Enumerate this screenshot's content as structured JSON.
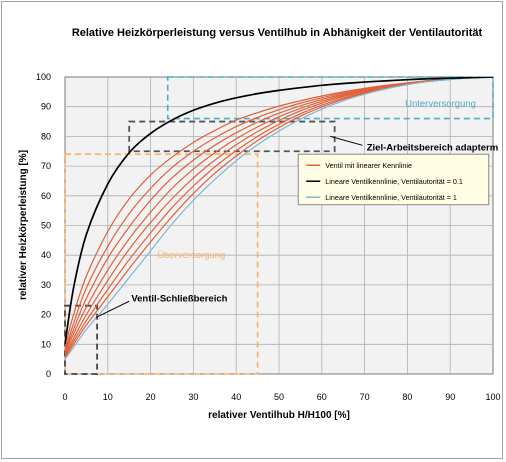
{
  "chart_data": {
    "type": "line",
    "title": "Relative Heizkörperleistung versus Ventilhub in Abhänigkeit der Ventilautorität",
    "xlabel": "relativer Ventilhub H/H100 [%]",
    "ylabel": "relativer Heizkörperleistung [%]",
    "xlim": [
      0,
      100
    ],
    "ylim": [
      0,
      100
    ],
    "x_ticks": [
      "0",
      "10",
      "20",
      "30",
      "40",
      "50",
      "60",
      "70",
      "80",
      "90",
      "100"
    ],
    "y_ticks": [
      "0",
      "10",
      "20",
      "30",
      "40",
      "50",
      "60",
      "70",
      "80",
      "90",
      "100"
    ],
    "grid": true,
    "legend_position": "right-middle",
    "x": [
      0,
      2,
      5,
      10,
      15,
      20,
      25,
      30,
      35,
      40,
      45,
      50,
      55,
      60,
      65,
      70,
      75,
      80,
      85,
      90,
      95,
      100
    ],
    "series": [
      {
        "name": "Lineare Ventilkennlinie, Ventilautorität = 0.1",
        "color": "#000000",
        "values": [
          10,
          29,
          47,
          64,
          74.5,
          81,
          85.5,
          88.8,
          91.2,
          93,
          94.4,
          95.5,
          96.4,
          97.2,
          97.8,
          98.3,
          98.7,
          99.1,
          99.4,
          99.6,
          99.8,
          100
        ]
      },
      {
        "name": "Ventil mit linearer Kennlinie",
        "color": "#e0603a",
        "values": [
          9,
          20,
          33,
          48,
          59,
          67,
          73,
          78,
          82,
          85.5,
          88,
          90.2,
          92,
          93.6,
          95,
          96.2,
          97.2,
          98,
          98.8,
          99.4,
          99.8,
          100
        ]
      },
      {
        "name": "",
        "color": "#e0603a",
        "values": [
          8,
          17,
          29,
          43,
          54,
          62.5,
          69.5,
          75,
          79.5,
          83.3,
          86.4,
          89,
          91.2,
          93,
          94.6,
          95.9,
          97,
          98,
          98.8,
          99.4,
          99.8,
          100
        ]
      },
      {
        "name": "",
        "color": "#e0603a",
        "values": [
          7.5,
          15,
          25.5,
          39,
          49.5,
          58.5,
          66,
          72,
          77,
          81.2,
          84.8,
          87.8,
          90.3,
          92.4,
          94.2,
          95.7,
          96.9,
          97.9,
          98.7,
          99.3,
          99.8,
          100
        ]
      },
      {
        "name": "",
        "color": "#e0603a",
        "values": [
          7,
          13.5,
          22.5,
          35,
          45.5,
          54.5,
          62.5,
          69,
          74.5,
          79.2,
          83.2,
          86.6,
          89.4,
          91.8,
          93.8,
          95.4,
          96.7,
          97.8,
          98.6,
          99.3,
          99.8,
          100
        ]
      },
      {
        "name": "",
        "color": "#e0603a",
        "values": [
          6.5,
          12,
          20,
          31.5,
          42,
          51,
          59,
          66,
          72,
          77.2,
          81.6,
          85.4,
          88.6,
          91.2,
          93.4,
          95.1,
          96.6,
          97.7,
          98.6,
          99.3,
          99.8,
          100
        ]
      },
      {
        "name": "",
        "color": "#e0603a",
        "values": [
          6,
          11,
          18,
          28.5,
          38.5,
          47.5,
          56,
          63.3,
          69.7,
          75.2,
          80,
          84.1,
          87.6,
          90.5,
          92.9,
          94.8,
          96.4,
          97.6,
          98.5,
          99.2,
          99.8,
          100
        ]
      },
      {
        "name": "",
        "color": "#e0603a",
        "values": [
          5.5,
          10,
          16.5,
          26,
          35.5,
          44.5,
          53,
          60.8,
          67.6,
          73.4,
          78.6,
          83,
          86.8,
          89.9,
          92.5,
          94.5,
          96.2,
          97.5,
          98.5,
          99.2,
          99.7,
          100
        ]
      },
      {
        "name": "Lineare Ventilkennlinie, Ventilautorität = 1",
        "color": "#7bb7da",
        "values": [
          5,
          9,
          15,
          23.5,
          32.5,
          41.5,
          50.5,
          58.5,
          65.5,
          71.8,
          77.2,
          81.8,
          85.8,
          89.2,
          92,
          94.2,
          96,
          97.4,
          98.5,
          99.2,
          99.7,
          100
        ]
      }
    ],
    "regions": [
      {
        "label": "Unterversorgung",
        "x": [
          24,
          100
        ],
        "y": [
          86,
          100
        ],
        "color": "#4bacc6"
      },
      {
        "label": "Ziel-Arbeitsbereich adapterm",
        "x": [
          15,
          63
        ],
        "y": [
          75,
          85
        ],
        "color": "#555555"
      },
      {
        "label": "Überversorgung",
        "x": [
          0,
          45
        ],
        "y": [
          0,
          74
        ],
        "color": "#f6b26b"
      },
      {
        "label": "Ventil-Schließbereich",
        "x": [
          0,
          7.5
        ],
        "y": [
          0,
          23
        ],
        "color": "#444444"
      }
    ],
    "colors": {
      "grid": "#b0b0b0",
      "plot_background": "#f2f2f2",
      "legend_background": "#fffde4"
    }
  }
}
